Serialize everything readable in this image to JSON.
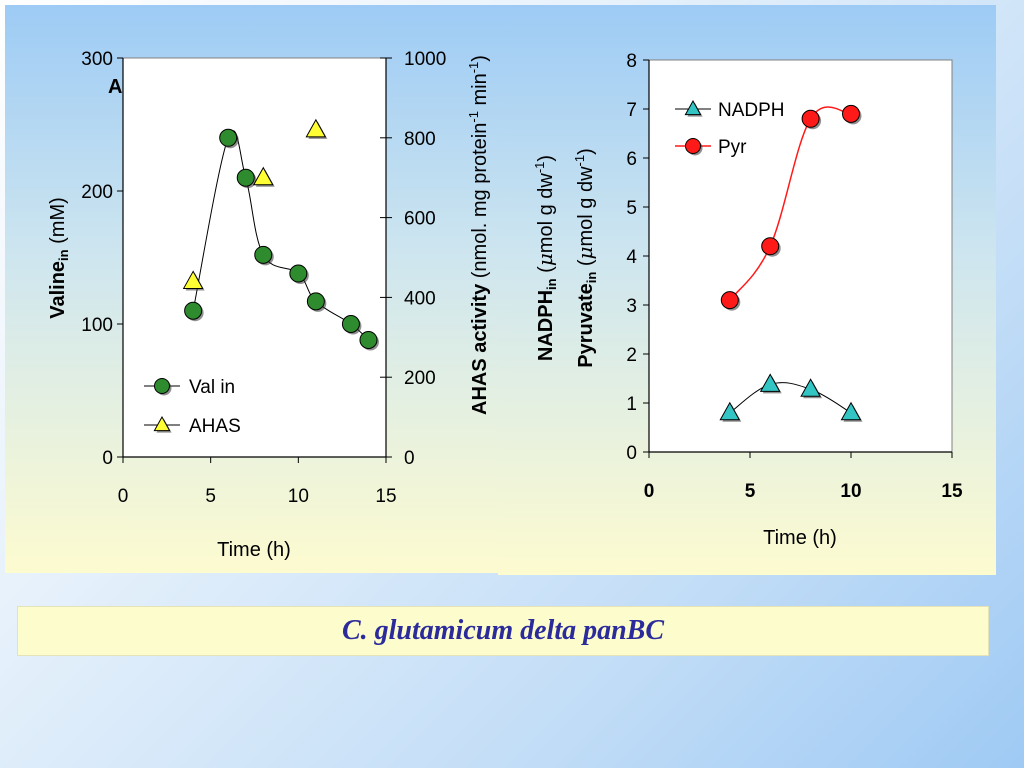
{
  "caption": "C. glutamicum delta panBC",
  "chart_data": [
    {
      "type": "line",
      "title": "",
      "panel_letter": "A",
      "xlabel": "Time (h)",
      "x_ticks": [
        "0",
        "5",
        "10",
        "15"
      ],
      "xlim": [
        0,
        15
      ],
      "ylabel": {
        "bold": "Valine",
        "sub": "in",
        "rest": " (mM)"
      },
      "ylim": [
        0,
        300
      ],
      "y_ticks": [
        "0",
        "100",
        "200",
        "300"
      ],
      "y2label": {
        "bold": "AHAS activity",
        "rest": " (nmol. mg protein",
        "sup1": "-1",
        "mid": " min",
        "sup2": "-1",
        "end": ")"
      },
      "y2lim": [
        0,
        1000
      ],
      "y2_ticks": [
        "0",
        "200",
        "400",
        "600",
        "800",
        "1000"
      ],
      "legend_position": "bottom-left",
      "grid": false,
      "series": [
        {
          "name": "Val in",
          "axis": "left",
          "marker": "circle",
          "color": "#2e8b2e",
          "x": [
            4,
            6,
            7,
            8,
            10,
            11,
            13,
            14
          ],
          "y": [
            110,
            240,
            210,
            152,
            138,
            117,
            100,
            88
          ]
        },
        {
          "name": "AHAS",
          "axis": "right",
          "marker": "triangle",
          "color": "#ffff33",
          "x": [
            4,
            8,
            11
          ],
          "y": [
            440,
            700,
            820
          ]
        }
      ]
    },
    {
      "type": "line",
      "title": "",
      "xlabel": "Time (h)",
      "x_ticks": [
        "0",
        "5",
        "10",
        "15"
      ],
      "xlim": [
        0,
        15
      ],
      "ylabel_line1": {
        "bold": "NADPH",
        "sub": "in",
        "pre": " (",
        "mu": "μ",
        "rest": "mol g dw",
        "sup": "-1",
        "end": ")"
      },
      "ylabel_line2": {
        "bold": "Pyruvate",
        "sub": "in",
        "pre": " (",
        "mu": "μ",
        "rest": "mol g dw",
        "sup": "-1",
        "end": ")"
      },
      "ylim": [
        0,
        8
      ],
      "y_ticks": [
        "0",
        "1",
        "2",
        "3",
        "4",
        "5",
        "6",
        "7",
        "8"
      ],
      "legend_position": "top-left",
      "grid": false,
      "series": [
        {
          "name": "NADPH",
          "marker": "triangle",
          "color": "#33c4c4",
          "x": [
            4,
            6,
            8,
            10
          ],
          "y": [
            0.8,
            1.38,
            1.28,
            0.8
          ]
        },
        {
          "name": "Pyr",
          "marker": "circle",
          "color": "#ff1a1a",
          "x": [
            4,
            6,
            8,
            10
          ],
          "y": [
            3.1,
            4.2,
            6.8,
            6.9
          ]
        }
      ]
    }
  ]
}
